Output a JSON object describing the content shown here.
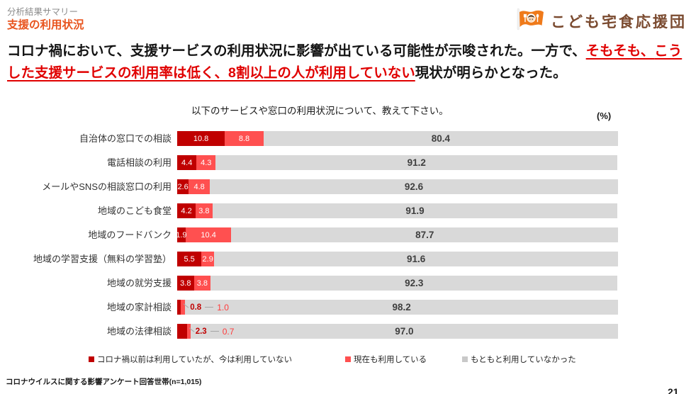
{
  "header": {
    "eyebrow": "分析結果サマリー",
    "title": "支援の利用状況",
    "title_color": "#e8541e"
  },
  "logo": {
    "icon": "flag-with-child-face-icon",
    "text": "こども宅食応援団",
    "flag_color": "#ef7a1a",
    "text_color": "#7a4a2f"
  },
  "summary": {
    "line1_black": "コロナ禍において、支援サービスの利用状況に影響が出ている可能性が示唆された。一方で、",
    "line1_red": "そもそも、",
    "line2_red": "こうした支援サービスの利用率は低く、8割以上の人が利用していない",
    "line2_black": "現状が明らかとなった。",
    "red_color": "#e00000"
  },
  "chart_data": {
    "type": "bar",
    "orientation": "horizontal",
    "stacked": true,
    "title": "以下のサービスや窓口の利用状況について、教えて下さい。",
    "unit_label": "(%)",
    "xlim": [
      0,
      100
    ],
    "categories": [
      "自治体の窓口での相談",
      "電話相談の利用",
      "メールやSNSの相談窓口の利用",
      "地域のこども食堂",
      "地域のフードバンク",
      "地域の学習支援（無料の学習塾）",
      "地域の就労支援",
      "地域の家計相談",
      "地域の法律相談"
    ],
    "series": [
      {
        "name": "コロナ禍以前は利用していたが、今は利用していない",
        "color": "#c00000",
        "values": [
          10.8,
          4.4,
          2.6,
          4.2,
          1.9,
          5.5,
          3.8,
          0.8,
          2.3
        ]
      },
      {
        "name": "現在も利用している",
        "color": "#ff5050",
        "values": [
          8.8,
          4.3,
          4.8,
          3.8,
          10.4,
          2.9,
          3.8,
          1.0,
          0.7
        ]
      },
      {
        "name": "もともと利用していなかった",
        "color": "#d9d9d9",
        "values": [
          80.4,
          91.2,
          92.6,
          91.9,
          87.7,
          91.6,
          92.3,
          98.2,
          97.0
        ]
      }
    ],
    "legend_position": "bottom"
  },
  "footer": {
    "note": "コロナウイルスに関する影響アンケート回答世帯(n=1,015)",
    "page_number": "21"
  }
}
